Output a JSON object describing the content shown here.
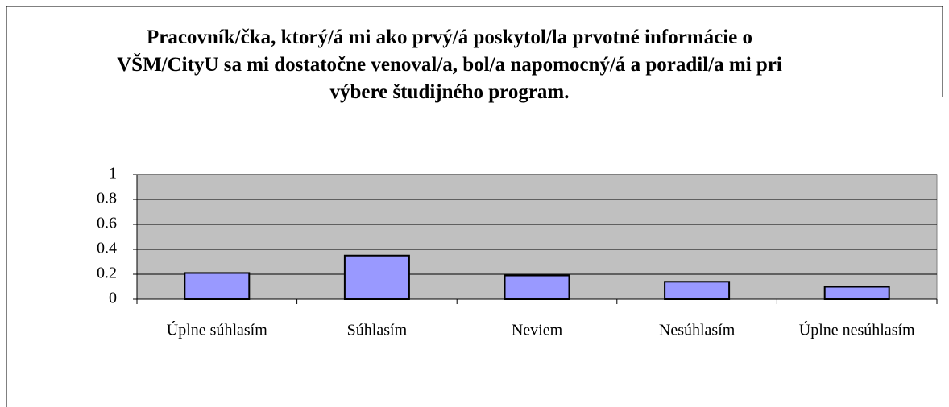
{
  "chart_data": {
    "type": "bar",
    "title": "Pracovník/čka, ktorý/á mi ako prvý/á poskytol/la prvotné informácie o VŠM/CityU sa mi dostatočne venoval/a, bol/a napomocný/á a poradil/a mi pri výbere študijného program.",
    "categories": [
      "Úplne súhlasím",
      "Súhlasím",
      "Neviem",
      "Nesúhlasím",
      "Úplne nesúhlasím"
    ],
    "values": [
      0.21,
      0.35,
      0.19,
      0.14,
      0.1
    ],
    "color": "#9999ff",
    "ylim": [
      0,
      1
    ],
    "yticks": [
      0,
      0.2,
      0.4,
      0.6,
      0.8,
      1
    ],
    "grid": true
  }
}
